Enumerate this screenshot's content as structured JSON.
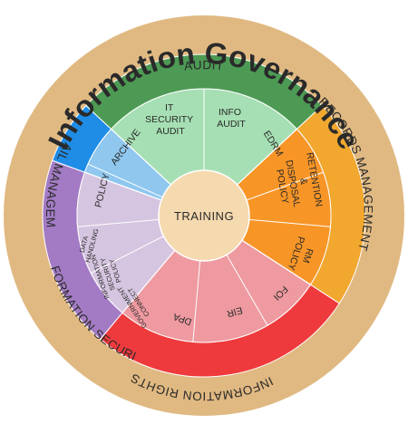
{
  "title": "Information Governance",
  "center": {
    "label": "TRAINING"
  },
  "colors": {
    "outer_ring": "#e0b982",
    "audit_dark": "#4d9a55",
    "audit_light": "#a6dfb3",
    "records_dark": "#f2a72f",
    "records_light": "#f79527",
    "rights_dark": "#ee3a3d",
    "rights_light": "#ee9aa0",
    "security_dark": "#a37bc4",
    "security_light": "#d6c5e0",
    "email_dark": "#1f8ce6",
    "email_light": "#8fc7ee",
    "center": "#f5d9af"
  },
  "sections": [
    {
      "name": "AUDIT",
      "items": [
        {
          "lines": [
            "IT",
            "SECURITY",
            "AUDIT"
          ]
        },
        {
          "lines": [
            "INFO",
            "AUDIT"
          ]
        }
      ]
    },
    {
      "name": "RECORDS MANAGEMENT",
      "items": [
        {
          "lines": [
            "EDRM"
          ]
        },
        {
          "lines": [
            "RETENTION",
            "&",
            "DISPOSAL",
            "POLICY"
          ]
        },
        {
          "lines": [
            "RM",
            "POLICY"
          ]
        }
      ]
    },
    {
      "name": "INFORMATION RIGHTS",
      "items": [
        {
          "lines": [
            "FOI"
          ]
        },
        {
          "lines": [
            "EIR"
          ]
        },
        {
          "lines": [
            "DPA"
          ]
        }
      ]
    },
    {
      "name": "INFORMATION SECURITY",
      "items": [
        {
          "lines": [
            "GOVERNMENT",
            "CONNECT"
          ]
        },
        {
          "lines": [
            "INFORMATION",
            "SECURITY",
            "POLICY"
          ]
        },
        {
          "lines": [
            "DATA",
            "HANDLING"
          ]
        }
      ]
    },
    {
      "name": "EMAIL MANAGEMENT",
      "items": [
        {
          "lines": [
            "POLICY"
          ]
        },
        {
          "lines": [
            "ARCHIVE"
          ]
        }
      ]
    }
  ]
}
